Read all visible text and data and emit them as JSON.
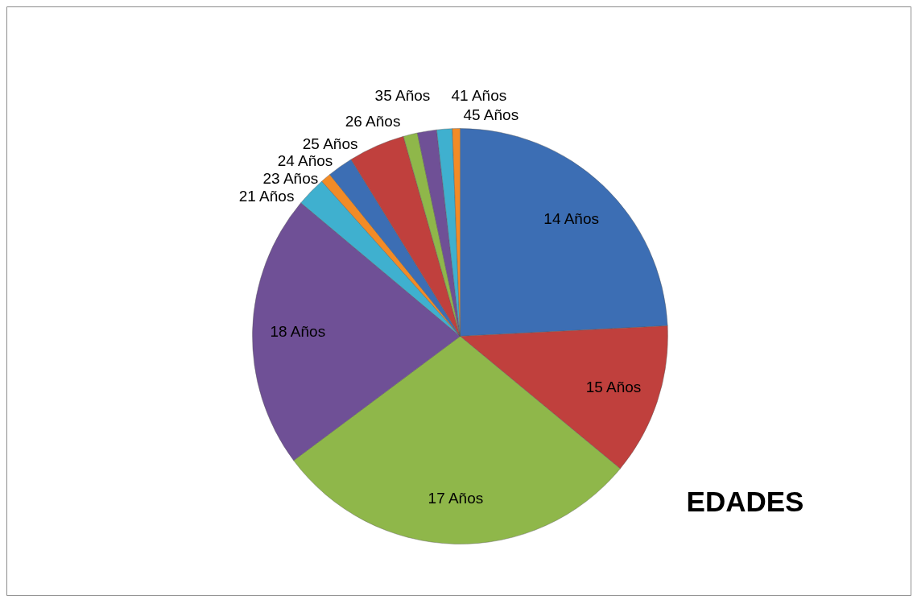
{
  "chart_data": {
    "type": "pie",
    "title": "EDADES",
    "categories": [
      "14 Años",
      "15 Años",
      "17 Años",
      "18 Años",
      "21 Años",
      "23 Años",
      "24 Años",
      "25 Años",
      "26 Años",
      "35 Años",
      "41 Años",
      "45 Años"
    ],
    "values": [
      24.2,
      11.8,
      28.8,
      21.3,
      2.3,
      0.8,
      2.0,
      4.4,
      1.1,
      1.5,
      1.2,
      0.6
    ],
    "colors": [
      "#3c6eb4",
      "#c0403d",
      "#8fb74a",
      "#6f5096",
      "#3fb0cf",
      "#f28b26",
      "#3c6eb4",
      "#c0403d",
      "#8fb74a",
      "#6f5096",
      "#3fb0cf",
      "#f28b26"
    ]
  }
}
